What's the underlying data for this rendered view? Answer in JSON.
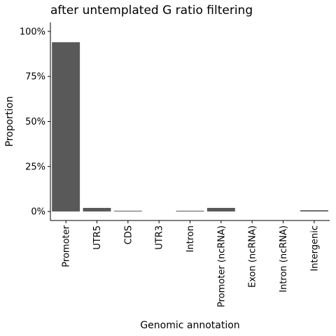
{
  "chart_data": {
    "type": "bar",
    "title": "after untemplated G ratio filtering",
    "xlabel": "Genomic annotation",
    "ylabel": "Proportion",
    "categories": [
      "Promoter",
      "UTR5",
      "CDS",
      "UTR3",
      "Intron",
      "Promoter (ncRNA)",
      "Exon (ncRNA)",
      "Intron (ncRNA)",
      "Intergenic"
    ],
    "values": [
      0.94,
      0.02,
      0.004,
      0.0,
      0.004,
      0.02,
      0.0,
      0.0,
      0.007
    ],
    "ylim": [
      -0.05,
      1.05
    ],
    "yticks": [
      0,
      0.25,
      0.5,
      0.75,
      1.0
    ],
    "ytick_labels": [
      "0%",
      "25%",
      "50%",
      "75%",
      "100%"
    ],
    "grid": false,
    "bar_color": "#595959"
  }
}
